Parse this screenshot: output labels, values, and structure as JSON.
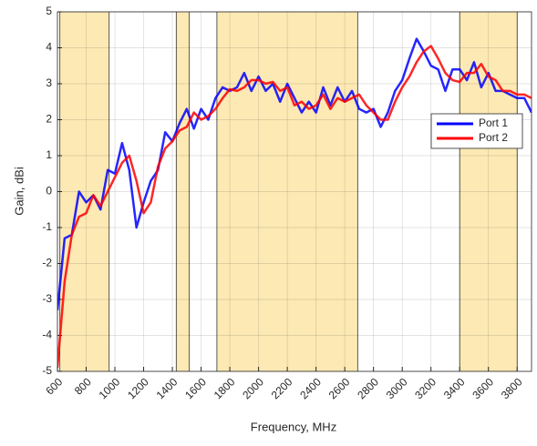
{
  "chart_data": {
    "type": "line",
    "xlabel": "Frequency, MHz",
    "ylabel": "Gain, dBi",
    "x": [
      600,
      650,
      700,
      750,
      800,
      850,
      900,
      950,
      1000,
      1050,
      1100,
      1150,
      1200,
      1250,
      1300,
      1350,
      1400,
      1450,
      1500,
      1550,
      1600,
      1650,
      1700,
      1750,
      1800,
      1850,
      1900,
      1950,
      2000,
      2050,
      2100,
      2150,
      2200,
      2250,
      2300,
      2350,
      2400,
      2450,
      2500,
      2550,
      2600,
      2650,
      2700,
      2750,
      2800,
      2850,
      2900,
      2950,
      3000,
      3050,
      3100,
      3150,
      3200,
      3250,
      3300,
      3350,
      3400,
      3450,
      3500,
      3550,
      3600,
      3650,
      3700,
      3750,
      3800,
      3850,
      3900
    ],
    "series": [
      {
        "name": "Port 1",
        "color": "#0000ff",
        "values": [
          -3.3,
          -1.3,
          -1.2,
          0.0,
          -0.3,
          -0.1,
          -0.5,
          0.6,
          0.5,
          1.35,
          0.6,
          -1.0,
          -0.3,
          0.3,
          0.6,
          1.65,
          1.4,
          1.9,
          2.3,
          1.75,
          2.3,
          2.0,
          2.6,
          2.9,
          2.8,
          2.9,
          3.3,
          2.8,
          3.2,
          2.8,
          3.0,
          2.5,
          3.0,
          2.6,
          2.2,
          2.5,
          2.2,
          2.9,
          2.4,
          2.9,
          2.5,
          2.8,
          2.3,
          2.2,
          2.3,
          1.8,
          2.2,
          2.8,
          3.1,
          3.7,
          4.25,
          3.9,
          3.5,
          3.4,
          2.8,
          3.4,
          3.4,
          3.1,
          3.6,
          2.9,
          3.3,
          2.8,
          2.8,
          2.7,
          2.6,
          2.6,
          2.2
        ]
      },
      {
        "name": "Port 2",
        "color": "#ff0000",
        "values": [
          -4.9,
          -2.5,
          -1.2,
          -0.7,
          -0.6,
          -0.1,
          -0.4,
          0.0,
          0.4,
          0.8,
          1.0,
          0.3,
          -0.6,
          -0.3,
          0.7,
          1.2,
          1.4,
          1.7,
          1.8,
          2.2,
          2.0,
          2.1,
          2.3,
          2.6,
          2.85,
          2.8,
          2.9,
          3.1,
          3.1,
          3.0,
          3.05,
          2.8,
          2.9,
          2.4,
          2.5,
          2.3,
          2.4,
          2.7,
          2.3,
          2.6,
          2.5,
          2.6,
          2.7,
          2.4,
          2.2,
          2.0,
          2.0,
          2.5,
          2.9,
          3.2,
          3.6,
          3.9,
          4.05,
          3.7,
          3.3,
          3.1,
          3.05,
          3.3,
          3.3,
          3.55,
          3.2,
          3.1,
          2.8,
          2.8,
          2.7,
          2.7,
          2.6
        ]
      }
    ],
    "shaded_bands": [
      [
        617,
        960
      ],
      [
        1427,
        1518
      ],
      [
        1710,
        2690
      ],
      [
        3400,
        3800
      ]
    ],
    "band_color": "#fce9b4",
    "xlim": [
      600,
      3900
    ],
    "xticks": [
      600,
      800,
      1000,
      1200,
      1400,
      1600,
      1800,
      2000,
      2200,
      2400,
      2600,
      2800,
      3000,
      3200,
      3400,
      3600,
      3800
    ],
    "ylim": [
      -5,
      5
    ],
    "yticks": [
      -5,
      -4,
      -3,
      -2,
      -1,
      0,
      1,
      2,
      3,
      4,
      5
    ],
    "grid": true,
    "legend": "northeast"
  }
}
